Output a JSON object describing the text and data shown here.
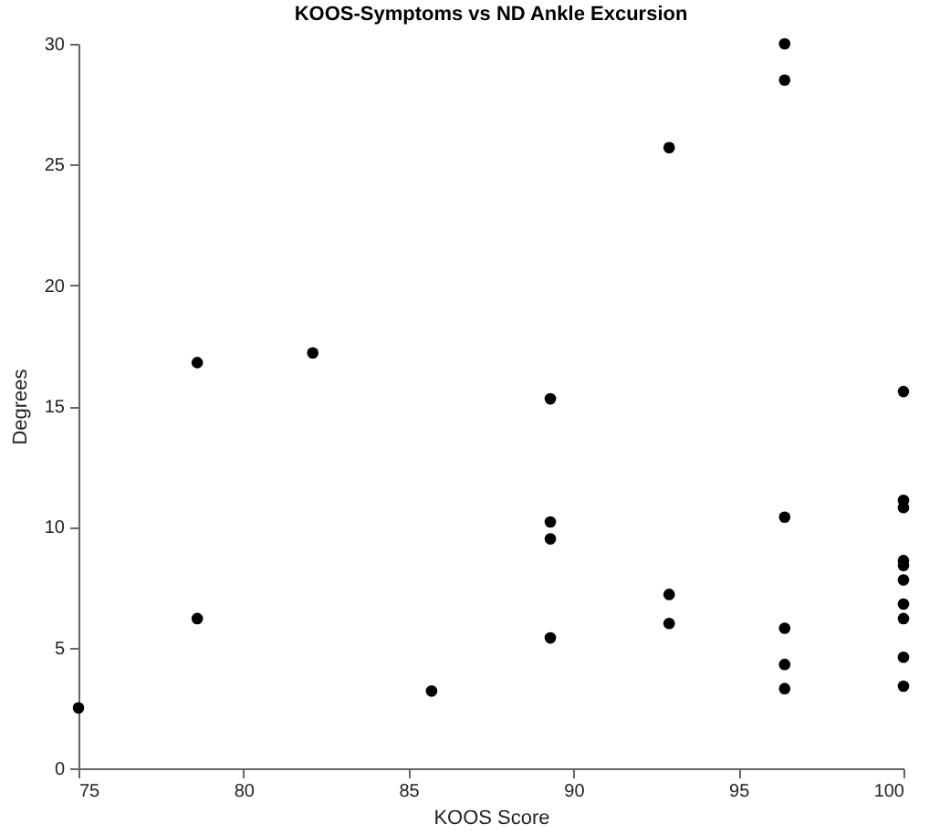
{
  "chart_data": {
    "type": "scatter",
    "title": "KOOS-Symptoms vs ND Ankle Excursion",
    "xlabel": "KOOS Score",
    "ylabel": "Degrees",
    "series": [
      {
        "color": "#000000",
        "x": [
          75,
          78.6,
          78.6,
          82.1,
          85.7,
          89.3,
          89.3,
          89.3,
          89.3,
          92.9,
          92.9,
          92.9,
          96.4,
          96.4,
          96.4,
          96.4,
          96.4,
          96.4,
          100,
          100,
          100,
          100,
          100,
          100,
          100,
          100,
          100,
          100
        ],
        "values": [
          2.5,
          16.8,
          6.2,
          17.2,
          3.2,
          15.3,
          10.2,
          9.5,
          5.4,
          25.7,
          7.2,
          6.0,
          30.0,
          28.5,
          10.4,
          5.8,
          4.3,
          3.3,
          15.6,
          11.1,
          10.8,
          8.6,
          8.4,
          7.8,
          6.8,
          6.2,
          4.6,
          3.4
        ]
      }
    ],
    "xlim": [
      75,
      100
    ],
    "xticks": [
      75,
      80,
      85,
      90,
      95,
      100
    ],
    "ylim": [
      0,
      30
    ],
    "yticks": [
      0,
      5,
      10,
      15,
      20,
      25,
      30
    ],
    "grid": false,
    "marker": "circle",
    "legend": false
  }
}
